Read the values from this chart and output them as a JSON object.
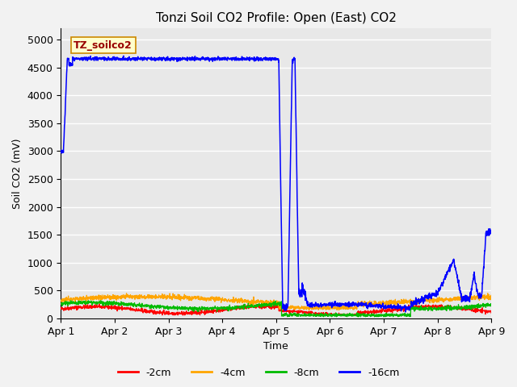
{
  "title": "Tonzi Soil CO2 Profile: Open (East) CO2",
  "xlabel": "Time",
  "ylabel": "Soil CO2 (mV)",
  "legend_label": "TZ_soilco2",
  "ylim": [
    0,
    5200
  ],
  "yticks": [
    0,
    500,
    1000,
    1500,
    2000,
    2500,
    3000,
    3500,
    4000,
    4500,
    5000
  ],
  "xtick_labels": [
    "Apr 1",
    "Apr 2",
    "Apr 3",
    "Apr 4",
    "Apr 5",
    "Apr 6",
    "Apr 7",
    "Apr 8",
    "Apr 9"
  ],
  "colors": {
    "-2cm": "#ff0000",
    "-4cm": "#ffa500",
    "-8cm": "#00bb00",
    "-16cm": "#0000ff"
  },
  "bg_color": "#e8e8e8",
  "grid_color": "#ffffff",
  "title_fontsize": 11,
  "axis_fontsize": 9,
  "tick_fontsize": 9,
  "legend_fontsize": 9
}
